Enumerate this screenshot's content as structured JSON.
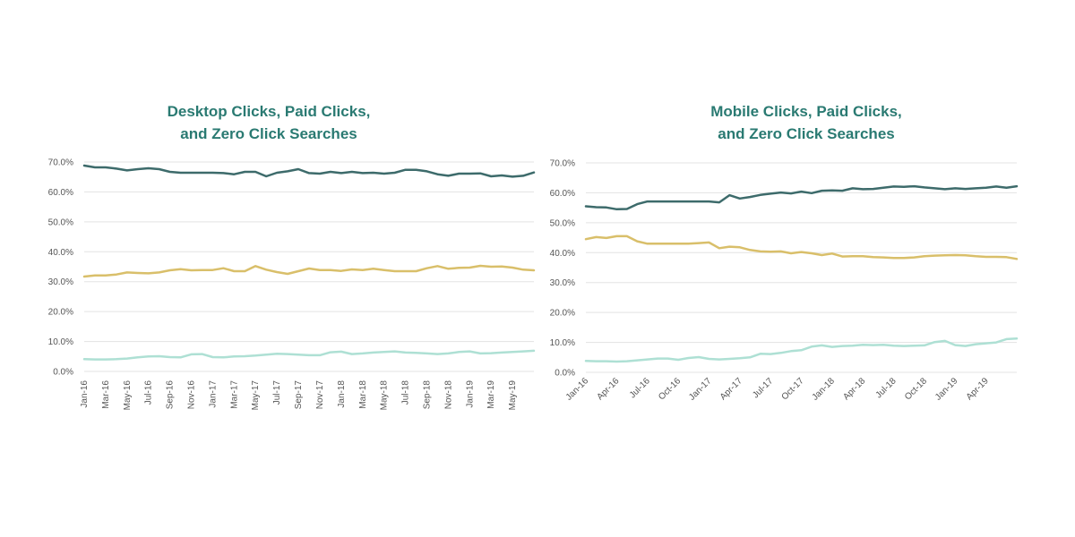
{
  "colors": {
    "title": "#2a7a72",
    "series1": "#3d6b6b",
    "series2": "#d9bf6a",
    "series3": "#aee0d4",
    "grid": "#e3e3e3"
  },
  "chart_data": [
    {
      "type": "line",
      "title_line1": "Desktop Clicks, Paid Clicks,",
      "title_line2": "and Zero Click Searches",
      "y_ticks": [
        "0.0%",
        "10.0%",
        "20.0%",
        "30.0%",
        "40.0%",
        "50.0%",
        "60.0%",
        "70.0%"
      ],
      "ylim": [
        0,
        70
      ],
      "x_tick_labels": [
        "Jan-16",
        "Mar-16",
        "May-16",
        "Jul-16",
        "Sep-16",
        "Nov-16",
        "Jan-17",
        "Mar-17",
        "May-17",
        "Jul-17",
        "Sep-17",
        "Nov-17",
        "Jan-18",
        "Mar-18",
        "May-18",
        "Jul-18",
        "Sep-18",
        "Nov-18",
        "Jan-19",
        "Mar-19",
        "May-19"
      ],
      "x_tick_step": 2,
      "series": [
        {
          "values": [
            68.8,
            68.2,
            68.2,
            67.8,
            67.2,
            67.6,
            67.9,
            67.6,
            66.7,
            66.4,
            66.4,
            66.4,
            66.4,
            66.3,
            65.9,
            66.7,
            66.7,
            65.2,
            66.4,
            66.9,
            67.6,
            66.3,
            66.1,
            66.7,
            66.3,
            66.7,
            66.3,
            66.4,
            66.1,
            66.4,
            67.4,
            67.4,
            66.9,
            65.9,
            65.4,
            66.1,
            66.1,
            66.2,
            65.2,
            65.5,
            65.1,
            65.4,
            66.5
          ]
        },
        {
          "values": [
            31.7,
            32.1,
            32.1,
            32.4,
            33.1,
            32.9,
            32.8,
            33.1,
            33.8,
            34.2,
            33.8,
            33.9,
            33.9,
            34.5,
            33.5,
            33.5,
            35.2,
            34.0,
            33.2,
            32.6,
            33.5,
            34.4,
            33.9,
            33.9,
            33.6,
            34.1,
            33.9,
            34.3,
            33.9,
            33.5,
            33.5,
            33.5,
            34.5,
            35.2,
            34.3,
            34.6,
            34.7,
            35.3,
            35.0,
            35.1,
            34.7,
            34.0,
            33.8
          ]
        },
        {
          "values": [
            4.1,
            4.0,
            4.0,
            4.1,
            4.3,
            4.7,
            5.0,
            5.1,
            4.8,
            4.7,
            5.7,
            5.8,
            4.8,
            4.7,
            5.0,
            5.1,
            5.3,
            5.6,
            5.9,
            5.8,
            5.6,
            5.4,
            5.4,
            6.4,
            6.6,
            5.8,
            6.0,
            6.3,
            6.5,
            6.7,
            6.3,
            6.2,
            6.0,
            5.8,
            6.0,
            6.5,
            6.7,
            6.0,
            6.1,
            6.3,
            6.5,
            6.7,
            6.9
          ]
        }
      ]
    },
    {
      "type": "line",
      "title_line1": "Mobile Clicks, Paid Clicks,",
      "title_line2": "and Zero Click Searches",
      "y_ticks": [
        "0.0%",
        "10.0%",
        "20.0%",
        "30.0%",
        "40.0%",
        "50.0%",
        "60.0%",
        "70.0%"
      ],
      "ylim": [
        0,
        70
      ],
      "x_tick_labels": [
        "Jan-16",
        "Apr-16",
        "Jul-16",
        "Oct-16",
        "Jan-17",
        "Apr-17",
        "Jul-17",
        "Oct-17",
        "Jan-18",
        "Apr-18",
        "Jul-18",
        "Oct-18",
        "Jan-19",
        "Apr-19"
      ],
      "x_tick_step": 3,
      "series": [
        {
          "values": [
            55.5,
            55.2,
            55.1,
            54.5,
            54.6,
            56.2,
            57.1,
            57.1,
            57.1,
            57.1,
            57.1,
            57.1,
            57.1,
            56.8,
            59.2,
            58.1,
            58.6,
            59.3,
            59.7,
            60.1,
            59.8,
            60.4,
            59.9,
            60.7,
            60.8,
            60.7,
            61.5,
            61.2,
            61.3,
            61.7,
            62.1,
            62.0,
            62.2,
            61.8,
            61.5,
            61.2,
            61.5,
            61.3,
            61.5,
            61.7,
            62.1,
            61.7,
            62.2
          ]
        },
        {
          "values": [
            44.5,
            45.2,
            44.9,
            45.5,
            45.5,
            43.8,
            43.0,
            43.0,
            43.0,
            43.0,
            43.0,
            43.2,
            43.4,
            41.5,
            42.0,
            41.8,
            40.9,
            40.4,
            40.3,
            40.4,
            39.8,
            40.2,
            39.8,
            39.2,
            39.7,
            38.7,
            38.8,
            38.8,
            38.5,
            38.4,
            38.2,
            38.2,
            38.4,
            38.8,
            39.0,
            39.1,
            39.2,
            39.1,
            38.8,
            38.6,
            38.6,
            38.5,
            37.9
          ]
        },
        {
          "values": [
            3.8,
            3.7,
            3.7,
            3.6,
            3.7,
            4.0,
            4.3,
            4.6,
            4.6,
            4.2,
            4.8,
            5.1,
            4.5,
            4.3,
            4.5,
            4.7,
            5.0,
            6.2,
            6.1,
            6.5,
            7.1,
            7.4,
            8.6,
            9.0,
            8.5,
            8.8,
            8.9,
            9.2,
            9.1,
            9.2,
            8.9,
            8.8,
            8.9,
            9.0,
            10.1,
            10.5,
            9.1,
            8.8,
            9.4,
            9.7,
            10.0,
            11.1,
            11.3
          ]
        }
      ]
    }
  ]
}
